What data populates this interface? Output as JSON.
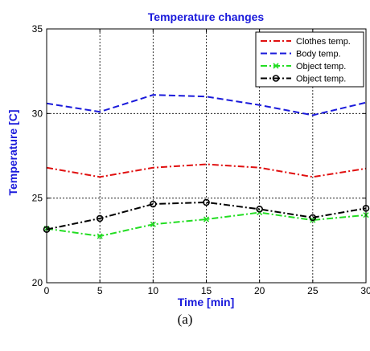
{
  "caption": "(a)",
  "chart_data": {
    "type": "line",
    "title": "Temperature changes",
    "xlabel": "Time [min]",
    "ylabel": "Temperature [C]",
    "xlim": [
      0,
      30
    ],
    "ylim": [
      20,
      35
    ],
    "xticks": [
      0,
      5,
      10,
      15,
      20,
      25,
      30
    ],
    "yticks": [
      20,
      25,
      30,
      35
    ],
    "grid": true,
    "legend_position": "top-right",
    "x": [
      0,
      5,
      10,
      15,
      20,
      25,
      30
    ],
    "series": [
      {
        "name": "Clothes temp.",
        "values": [
          26.8,
          26.25,
          26.8,
          27.0,
          26.8,
          26.25,
          26.75
        ],
        "color": "#e01010",
        "dash": "dashdot",
        "marker": "none"
      },
      {
        "name": "Body temp.",
        "values": [
          30.6,
          30.1,
          31.1,
          31.0,
          30.5,
          29.9,
          30.65
        ],
        "color": "#1a1adb",
        "dash": "dash",
        "marker": "none"
      },
      {
        "name": "Object temp.",
        "values": [
          23.2,
          22.75,
          23.45,
          23.75,
          24.15,
          23.7,
          24.0
        ],
        "color": "#22dd22",
        "dash": "dashdot",
        "marker": "x"
      },
      {
        "name": "Object temp.",
        "values": [
          23.15,
          23.8,
          24.65,
          24.75,
          24.35,
          23.85,
          24.4
        ],
        "color": "#000000",
        "dash": "dashdot",
        "marker": "circle"
      }
    ]
  }
}
